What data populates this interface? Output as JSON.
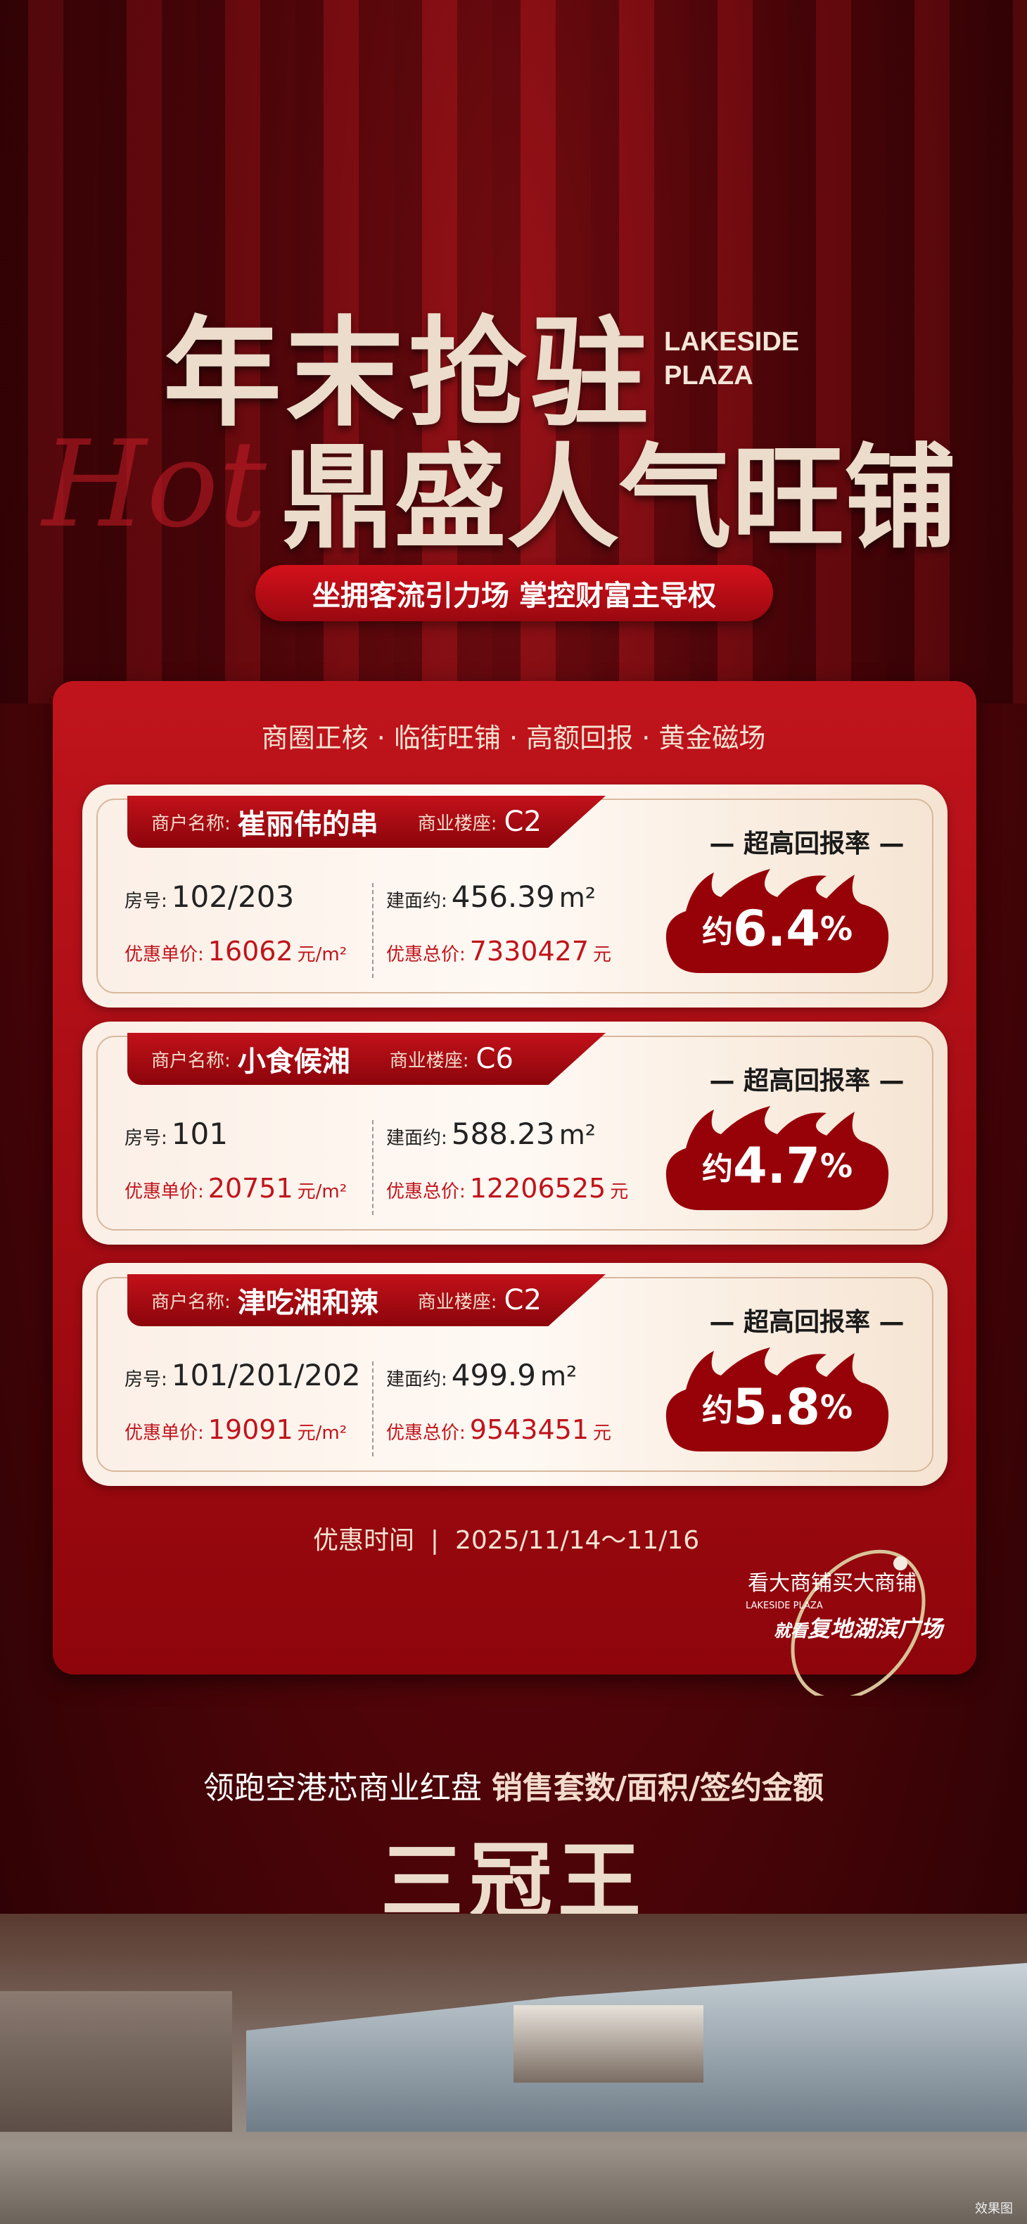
{
  "header": {
    "title_line1": "年末抢驻",
    "brand_en_line1": "LAKESIDE",
    "brand_en_line2": "PLAZA",
    "title_line2": "鼎盛人气旺铺",
    "script_word": "Hot",
    "tagline": "坐拥客流引力场 掌控财富主导权"
  },
  "panel": {
    "subtitle": "商圈正核 · 临街旺铺 · 高额回报 · 黄金磁场",
    "labels": {
      "merchant": "商户名称:",
      "building": "商业楼座:",
      "room": "房号:",
      "area": "建面约:",
      "unit_price": "优惠单价:",
      "total_price": "优惠总价:",
      "rate_title": "— 超高回报率 —",
      "approx": "约",
      "unit_price_suffix": "元/m²",
      "total_suffix": "元",
      "area_suffix": "m²"
    },
    "cards": [
      {
        "merchant": "崔丽伟的串",
        "building": "C2",
        "room": "102/203",
        "area": "456.39",
        "unit_price": "16062",
        "total_price": "7330427",
        "rate": "6.4",
        "pct": "%"
      },
      {
        "merchant": "小食候湘",
        "building": "C6",
        "room": "101",
        "area": "588.23",
        "unit_price": "20751",
        "total_price": "12206525",
        "rate": "4.7",
        "pct": "%"
      },
      {
        "merchant": "津吃湘和辣",
        "building": "C2",
        "room": "101/201/202",
        "area": "499.9",
        "unit_price": "19091",
        "total_price": "9543451",
        "rate": "5.8",
        "pct": "%"
      }
    ],
    "date_label": "优惠时间",
    "date_sep": "|",
    "date_range": "2025/11/14～11/16",
    "slogan1": "看大商铺买大商铺",
    "slogan_en": "LAKESIDE PLAZA",
    "slogan2_prefix": "就看",
    "slogan2": "复地湖滨广场"
  },
  "footer": {
    "line_prefix": "领跑空港芯商业红盘 ",
    "line_bold": "销售套数/面积/签约金额",
    "crown": "三冠王",
    "note": "效果图"
  },
  "colors": {
    "primary_red": "#c0141c",
    "cream": "#ecdccb"
  }
}
